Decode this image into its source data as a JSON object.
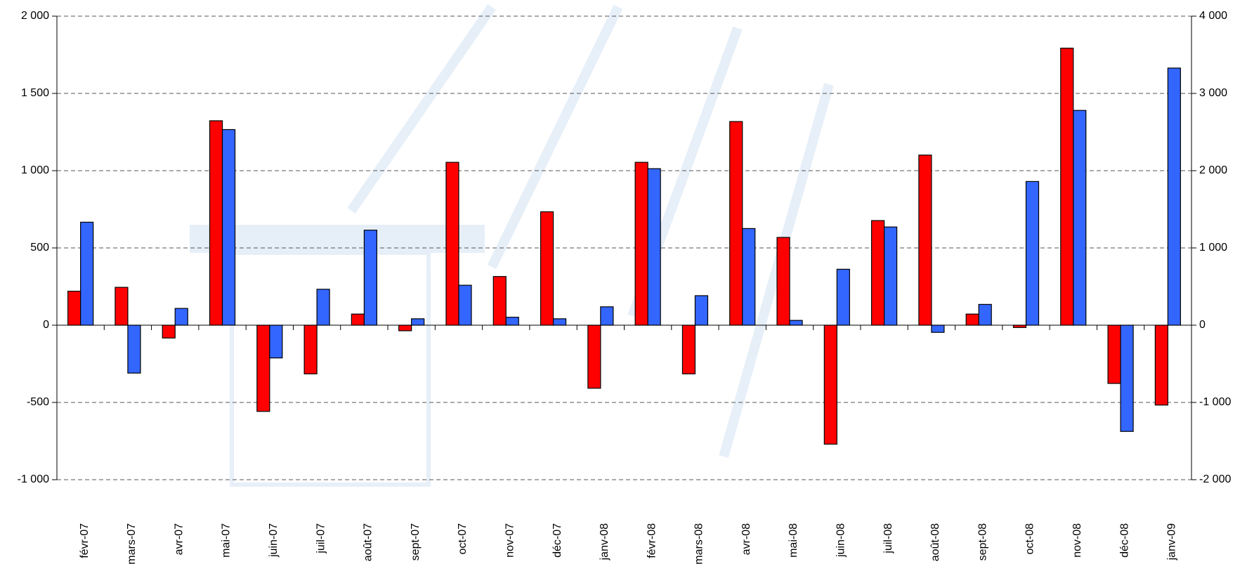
{
  "chart_data": {
    "type": "bar",
    "categories": [
      "févr-07",
      "mars-07",
      "avr-07",
      "mai-07",
      "juin-07",
      "juil-07",
      "août-07",
      "sept-07",
      "oct-07",
      "nov-07",
      "déc-07",
      "janv-08",
      "févr-08",
      "mars-08",
      "avr-08",
      "mai-08",
      "juin-08",
      "juil-08",
      "août-08",
      "sept-08",
      "oct-08",
      "nov-08",
      "déc-08",
      "janv-09"
    ],
    "series": [
      {
        "color": "#ff0000",
        "values": [
          220,
          245,
          -83,
          1323,
          -558,
          -315,
          72,
          -36,
          1054,
          315,
          734,
          -408,
          1054,
          -315,
          1318,
          568,
          -770,
          677,
          1101,
          72,
          -15,
          1793,
          -377,
          -517
        ]
      },
      {
        "color": "#3366ff",
        "axis": "y2",
        "values": [
          1333,
          -620,
          217,
          2532,
          -424,
          465,
          1230,
          83,
          517,
          103,
          83,
          238,
          2026,
          382,
          1251,
          62,
          724,
          1271,
          -93,
          269,
          1860,
          2780,
          -1375,
          3328
        ]
      }
    ],
    "ylim": [
      -1000,
      2000
    ],
    "yticks": [
      {
        "value": -1000,
        "label": "-1 000"
      },
      -500,
      0,
      500,
      {
        "value": 1000,
        "label": "1 000"
      },
      {
        "value": 1500,
        "label": "1 500"
      },
      {
        "value": 2000,
        "label": "2 000"
      }
    ],
    "y2lim": [
      -2000,
      4000
    ],
    "y2ticks": [
      {
        "value": -2000,
        "label": "-2 000"
      },
      {
        "value": -1000,
        "label": "-1 000"
      },
      0,
      {
        "value": 1000,
        "label": "1 000"
      },
      {
        "value": 2000,
        "label": "2 000"
      },
      {
        "value": 3000,
        "label": "3 000"
      },
      {
        "value": 4000,
        "label": "4 000"
      }
    ],
    "grid": true
  }
}
